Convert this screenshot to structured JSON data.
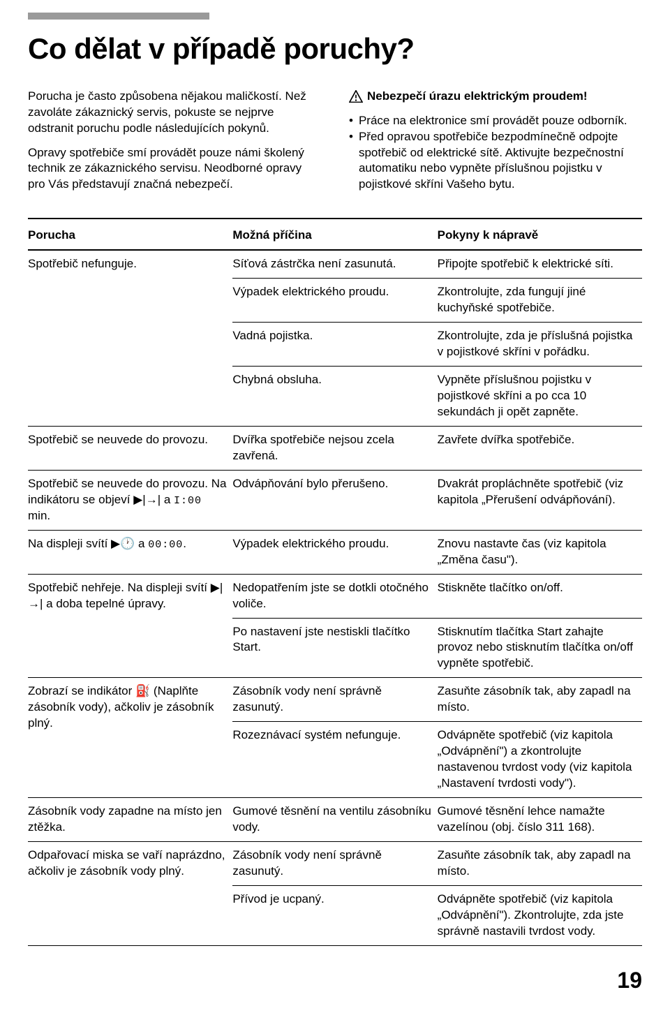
{
  "colors": {
    "bg": "#ffffff",
    "text": "#000000",
    "bar": "#9a9a9a"
  },
  "title": "Co dělat v případě poruchy?",
  "intro": {
    "p1": "Porucha je často způsobena nějakou maličkostí. Než zavoláte zákaznický servis, pokuste se nejprve odstranit poruchu podle následujících pokynů.",
    "p2": "Opravy spotřebiče smí provádět pouze námi školený technik ze zákaznického servisu. Neodborné opravy pro Vás představují značná nebezpečí."
  },
  "warning": {
    "heading": "Nebezpečí úrazu elektrickým proudem!",
    "items": [
      "Práce na elektronice smí provádět pouze odborník.",
      "Před opravou spotřebiče bezpodmínečně odpojte spotřebič od elektrické sítě. Aktivujte bezpečnostní automatiku nebo vypněte příslušnou pojistku v pojistkové skříni Vašeho bytu."
    ]
  },
  "table": {
    "headers": [
      "Porucha",
      "Možná příčina",
      "Pokyny k nápravě"
    ],
    "rows": [
      {
        "c0": "Spotřebič nefunguje.",
        "c1": "Síťová zástrčka není zasunutá.",
        "c2": "Připojte spotřebič k elektrické síti.",
        "span": 4,
        "sectionEnd": false
      },
      {
        "c0": "",
        "c1": "Výpadek elektrického proudu.",
        "c2": "Zkontrolujte, zda fungují jiné kuchyňské spotřebiče.",
        "sectionEnd": false
      },
      {
        "c0": "",
        "c1": "Vadná pojistka.",
        "c2": "Zkontrolujte, zda je příslušná pojistka v pojistkové skříni v pořádku.",
        "sectionEnd": false
      },
      {
        "c0": "",
        "c1": "Chybná obsluha.",
        "c2": "Vypněte příslušnou pojistku v pojistkové skříni a po cca 10 sekundách ji opět zapněte.",
        "sectionEnd": true
      },
      {
        "c0": "Spotřebič se neuvede do provozu.",
        "c1": "Dvířka spotřebiče nejsou zcela zavřená.",
        "c2": "Zavřete dvířka spotřebiče.",
        "span": 1,
        "sectionEnd": true
      },
      {
        "c0": "Spotřebič se neuvede do provozu. Na indikátoru se objeví ",
        "c0_sym": "▶|→|",
        "c0_suffix": " a ",
        "c0_seg": "I:00",
        "c0_tail": " min.",
        "c1": "Odvápňování bylo přerušeno.",
        "c2": "Dvakrát propláchněte spotřebič (viz kapitola „Přerušení odvápňování).",
        "span": 1,
        "sectionEnd": true
      },
      {
        "c0": "Na displeji svítí ",
        "c0_sym": "▶🕐",
        "c0_suffix": " a ",
        "c0_seg": "00:00",
        "c0_tail": ".",
        "c1": "Výpadek elektrického proudu.",
        "c2": "Znovu nastavte čas (viz kapitola „Změna času\").",
        "span": 1,
        "sectionEnd": true
      },
      {
        "c0": "Spotřebič nehřeje. Na displeji svítí ",
        "c0_sym": "▶|→|",
        "c0_suffix": " a doba tepelné úpravy.",
        "c1": "Nedopatřením jste se dotkli otočného voliče.",
        "c2": "Stiskněte tlačítko on/off.",
        "span": 2,
        "sectionEnd": false
      },
      {
        "c0": "",
        "c1": "Po nastavení jste nestiskli tlačítko Start.",
        "c2": "Stisknutím tlačítka Start zahajte provoz nebo stisknutím tlačítka on/off vypněte spotřebič.",
        "sectionEnd": true
      },
      {
        "c0": "Zobrazí se indikátor ",
        "c0_sym": "⛽",
        "c0_suffix": " (Naplňte zásobník vody), ačkoliv je zásobník plný.",
        "c1": "Zásobník vody není správně zasunutý.",
        "c2": "Zasuňte zásobník tak, aby zapadl na místo.",
        "span": 2,
        "sectionEnd": false
      },
      {
        "c0": "",
        "c1": "Rozeznávací systém nefunguje.",
        "c2": "Odvápněte spotřebič (viz kapitola „Odvápnění\") a zkontrolujte nastavenou tvrdost vody (viz kapitola „Nastavení tvrdosti vody\").",
        "sectionEnd": true
      },
      {
        "c0": "Zásobník vody zapadne na místo jen ztěžka.",
        "c1": "Gumové těsnění na ventilu zásobníku vody.",
        "c2": "Gumové těsnění lehce namažte vazelínou (obj. číslo 311 168).",
        "span": 1,
        "sectionEnd": true
      },
      {
        "c0": "Odpařovací miska se vaří naprázdno, ačkoliv je zásobník vody plný.",
        "c1": "Zásobník vody není správně zasunutý.",
        "c2": "Zasuňte zásobník tak, aby zapadl na místo.",
        "span": 2,
        "sectionEnd": false
      },
      {
        "c0": "",
        "c1": "Přívod je ucpaný.",
        "c2": "Odvápněte spotřebič (viz kapitola „Odvápnění\"). Zkontrolujte, zda jste správně nastavili tvrdost vody.",
        "sectionEnd": true
      }
    ]
  },
  "pageNumber": "19"
}
